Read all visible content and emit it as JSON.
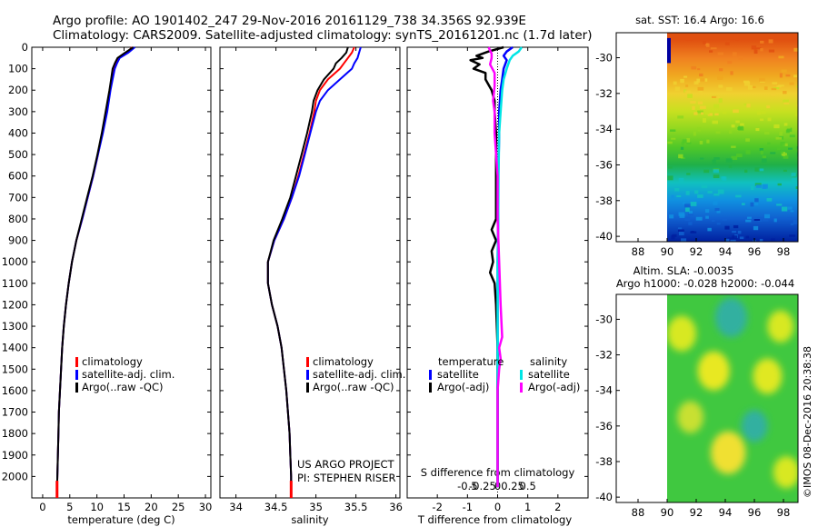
{
  "header": {
    "line1": "Argo profile: AO 1901402_247 29-Nov-2016 20161129_738 34.356S 92.939E",
    "line2": "Climatology: CARS2009. Satellite-adjusted climatology: synTS_20161201.nc (1.7d later)"
  },
  "credits": {
    "project": "US ARGO PROJECT",
    "pi": "PI: STEPHEN RISER",
    "stamp": "©IMOS 08-Dec-2016 20:38:38"
  },
  "colors": {
    "climatology": "#ff0000",
    "satellite": "#0000ff",
    "argo": "#000000",
    "satellite_s": "#00e5e5",
    "argo_s": "#ff00ff"
  },
  "chart_data": [
    {
      "id": "temperature",
      "type": "line",
      "xlabel": "temperature (deg C)",
      "ylabel": "",
      "xlim": [
        -2,
        31
      ],
      "ylim": [
        2100,
        0
      ],
      "xticks": [
        0,
        5,
        10,
        15,
        20,
        25,
        30
      ],
      "xtick_labels": [
        "0",
        "5",
        "10",
        "15",
        "20",
        "25",
        "30"
      ],
      "yticks": [
        0,
        100,
        200,
        300,
        400,
        500,
        600,
        700,
        800,
        900,
        1000,
        1100,
        1200,
        1300,
        1400,
        1500,
        1600,
        1700,
        1800,
        1900,
        2000
      ],
      "legend": [
        "climatology",
        "satellite-adj. clim.",
        "Argo(..raw -QC)"
      ],
      "series": [
        {
          "name": "climatology",
          "depth": [
            0,
            25,
            50,
            75,
            100,
            150,
            200,
            300,
            400,
            500,
            600,
            700,
            800,
            900,
            1000,
            1100,
            1200,
            1300,
            1400,
            1500,
            1600,
            1700,
            1800,
            1900,
            2000,
            2050
          ],
          "values": [
            16.5,
            15.5,
            14.0,
            13.6,
            13.2,
            12.8,
            12.4,
            11.8,
            11.0,
            10.2,
            9.3,
            8.3,
            7.3,
            6.2,
            5.4,
            4.8,
            4.3,
            3.9,
            3.6,
            3.4,
            3.2,
            3.0,
            2.9,
            2.8,
            2.7,
            2.65
          ]
        },
        {
          "name": "satellite-adj. clim.",
          "depth": [
            0,
            25,
            50,
            75,
            100,
            150,
            200,
            300,
            400,
            500,
            600,
            700,
            800,
            900,
            1000,
            1100,
            1200,
            1300,
            1400,
            1500,
            1600,
            1700,
            1800,
            1900,
            2000,
            2050
          ],
          "values": [
            17.0,
            15.8,
            14.2,
            13.7,
            13.3,
            12.9,
            12.5,
            11.9,
            11.1,
            10.2,
            9.3,
            8.3,
            7.3,
            6.2,
            5.4,
            4.8,
            4.3,
            3.9,
            3.6,
            3.4,
            3.2,
            3.0,
            2.9,
            2.8,
            2.7,
            2.65
          ]
        },
        {
          "name": "Argo(..raw -QC)",
          "depth": [
            0,
            25,
            50,
            75,
            100,
            150,
            200,
            300,
            400,
            500,
            600,
            700,
            800,
            900,
            1000,
            1100,
            1200,
            1300,
            1400,
            1500,
            1600,
            1700,
            1800,
            1900,
            2000,
            2050
          ],
          "values": [
            16.7,
            15.2,
            13.8,
            13.3,
            12.9,
            12.6,
            12.3,
            11.6,
            10.9,
            10.1,
            9.2,
            8.2,
            7.2,
            6.2,
            5.4,
            4.8,
            4.3,
            3.9,
            3.6,
            3.4,
            3.2,
            3.0,
            2.9,
            2.8,
            2.7,
            2.65
          ]
        }
      ]
    },
    {
      "id": "salinity",
      "type": "line",
      "xlabel": "salinity",
      "ylabel": "",
      "xlim": [
        33.8,
        36.05
      ],
      "ylim": [
        2100,
        0
      ],
      "xticks": [
        34,
        34.5,
        35,
        35.5,
        36
      ],
      "xtick_labels": [
        "34",
        "34.5",
        "35",
        "35.5",
        "36"
      ],
      "legend": [
        "climatology",
        "satellite-adj. clim.",
        "Argo(..raw -QC)"
      ],
      "series": [
        {
          "name": "climatology",
          "depth": [
            0,
            25,
            50,
            75,
            100,
            150,
            200,
            250,
            300,
            400,
            500,
            600,
            700,
            800,
            900,
            1000,
            1100,
            1200,
            1300,
            1400,
            1500,
            1600,
            1700,
            1800,
            1900,
            2000,
            2050
          ],
          "values": [
            35.48,
            35.45,
            35.4,
            35.35,
            35.3,
            35.15,
            35.05,
            35.0,
            34.98,
            34.92,
            34.85,
            34.78,
            34.7,
            34.6,
            34.48,
            34.4,
            34.4,
            34.45,
            34.52,
            34.57,
            34.6,
            34.63,
            34.65,
            34.67,
            34.68,
            34.69,
            34.69
          ]
        },
        {
          "name": "satellite-adj. clim.",
          "depth": [
            0,
            25,
            50,
            75,
            100,
            150,
            200,
            250,
            300,
            400,
            500,
            600,
            700,
            800,
            900,
            1000,
            1100,
            1200,
            1300,
            1400,
            1500,
            1600,
            1700,
            1800,
            1900,
            2000,
            2050
          ],
          "values": [
            35.56,
            35.54,
            35.52,
            35.48,
            35.45,
            35.3,
            35.15,
            35.05,
            35.0,
            34.93,
            34.86,
            34.79,
            34.7,
            34.6,
            34.48,
            34.4,
            34.4,
            34.45,
            34.52,
            34.57,
            34.6,
            34.63,
            34.65,
            34.67,
            34.68,
            34.69,
            34.69
          ]
        },
        {
          "name": "Argo(..raw -QC)",
          "depth": [
            0,
            25,
            50,
            75,
            100,
            150,
            200,
            250,
            300,
            400,
            500,
            600,
            700,
            800,
            900,
            1000,
            1100,
            1200,
            1300,
            1400,
            1500,
            1600,
            1700,
            1800,
            1900,
            2000,
            2050
          ],
          "values": [
            35.4,
            35.38,
            35.32,
            35.25,
            35.22,
            35.1,
            35.02,
            34.97,
            34.95,
            34.89,
            34.82,
            34.75,
            34.68,
            34.58,
            34.47,
            34.4,
            34.4,
            34.45,
            34.52,
            34.57,
            34.6,
            34.63,
            34.65,
            34.67,
            34.68,
            34.69,
            34.69
          ]
        }
      ]
    },
    {
      "id": "difference",
      "type": "line",
      "xlabel": "T difference from climatology",
      "top_xlabel": "S difference from climatology",
      "xlim": [
        -3,
        3
      ],
      "ylim": [
        2100,
        0
      ],
      "xticks": [
        -2,
        -1,
        0,
        1,
        2
      ],
      "xtick_labels": [
        "-2",
        "-1",
        "0",
        "1",
        "2"
      ],
      "top_tick_values": [
        -1,
        -0.5,
        0,
        0.5,
        1
      ],
      "top_tick_labels": [
        "-0.5",
        "-0.25",
        "0",
        "0.25",
        "0.5"
      ],
      "legend_titles": [
        "temperature",
        "salinity"
      ],
      "legend": [
        "satellite",
        "Argo(-adj)",
        "satellite",
        "Argo(-adj)"
      ],
      "series": [
        {
          "name": "T satellite",
          "depth": [
            0,
            20,
            40,
            60,
            80,
            100,
            150,
            200,
            300,
            400,
            600,
            800,
            1000,
            1200,
            1400,
            1600,
            1800,
            2050
          ],
          "values": [
            0.5,
            0.3,
            0.2,
            0.3,
            0.25,
            0.2,
            0.15,
            0.1,
            0.05,
            0.05,
            0.02,
            0.02,
            0.0,
            0.0,
            0.0,
            0.0,
            0.0,
            0.0
          ]
        },
        {
          "name": "T Argo(-adj)",
          "depth": [
            0,
            20,
            40,
            50,
            60,
            80,
            100,
            120,
            150,
            200,
            250,
            300,
            400,
            600,
            800,
            850,
            900,
            950,
            1000,
            1050,
            1100,
            1200,
            1400,
            1600,
            1800,
            2000,
            2050
          ],
          "values": [
            0.2,
            -0.3,
            -0.7,
            -0.5,
            -0.9,
            -0.6,
            -0.8,
            -0.4,
            -0.4,
            -0.2,
            -0.1,
            -0.1,
            -0.05,
            -0.05,
            -0.05,
            -0.2,
            -0.05,
            -0.2,
            -0.15,
            -0.25,
            -0.1,
            -0.05,
            0.0,
            0.0,
            0.0,
            0.0,
            0.0
          ]
        },
        {
          "name": "S satellite",
          "depth": [
            0,
            20,
            40,
            60,
            80,
            100,
            150,
            200,
            300,
            400,
            600,
            800,
            1000,
            1200,
            1400,
            1600,
            1800,
            2050
          ],
          "values": [
            0.8,
            0.7,
            0.5,
            0.4,
            0.35,
            0.3,
            0.2,
            0.15,
            0.1,
            0.05,
            0.03,
            0.02,
            0.0,
            0.0,
            0.0,
            0.0,
            0.0,
            0.0
          ]
        },
        {
          "name": "S Argo(-adj)",
          "depth": [
            0,
            30,
            50,
            80,
            120,
            180,
            250,
            300,
            400,
            600,
            800,
            1000,
            1200,
            1350,
            1400,
            1450,
            1500,
            1600,
            1800,
            2050
          ],
          "values": [
            -0.3,
            -0.2,
            -0.2,
            -0.25,
            -0.1,
            -0.1,
            -0.15,
            -0.1,
            -0.1,
            0.0,
            0.0,
            0.05,
            0.1,
            0.15,
            0.05,
            0.1,
            0.05,
            0.0,
            0.0,
            0.0
          ]
        }
      ]
    },
    {
      "id": "sst_map",
      "type": "heatmap",
      "title": "sat. SST: 16.4 Argo: 16.6",
      "xlim": [
        86.5,
        99
      ],
      "ylim": [
        -40.3,
        -28.6
      ],
      "xticks": [
        88,
        90,
        92,
        94,
        96,
        98
      ],
      "yticks": [
        -30,
        -32,
        -34,
        -36,
        -38,
        -40
      ],
      "xtick_labels": [
        "88",
        "90",
        "92",
        "94",
        "96",
        "98"
      ],
      "ytick_labels": [
        "-30",
        "-32",
        "-34",
        "-36",
        "-38",
        "-40"
      ],
      "data_extent": [
        90,
        99
      ],
      "bands": [
        {
          "lat": -29.0,
          "color": "#e05010"
        },
        {
          "lat": -30.0,
          "color": "#f08020"
        },
        {
          "lat": -31.0,
          "color": "#f0a820"
        },
        {
          "lat": -32.0,
          "color": "#f0d030"
        },
        {
          "lat": -33.0,
          "color": "#c8e020"
        },
        {
          "lat": -34.0,
          "color": "#90d820"
        },
        {
          "lat": -35.0,
          "color": "#50c828"
        },
        {
          "lat": -36.0,
          "color": "#20b048"
        },
        {
          "lat": -37.0,
          "color": "#10c0c0"
        },
        {
          "lat": -38.0,
          "color": "#1090e0"
        },
        {
          "lat": -39.0,
          "color": "#1060d0"
        },
        {
          "lat": -40.3,
          "color": "#0020a0"
        }
      ]
    },
    {
      "id": "sla_map",
      "type": "heatmap",
      "title": "Altim. SLA: -0.0035",
      "subtitle": "Argo h1000: -0.028 h2000: -0.044",
      "xlim": [
        86.5,
        99
      ],
      "ylim": [
        -40.3,
        -28.6
      ],
      "xticks": [
        88,
        90,
        92,
        94,
        96,
        98
      ],
      "yticks": [
        -30,
        -32,
        -34,
        -36,
        -38,
        -40
      ],
      "xtick_labels": [
        "88",
        "90",
        "92",
        "94",
        "96",
        "98"
      ],
      "ytick_labels": [
        "-30",
        "-32",
        "-34",
        "-36",
        "-38",
        "-40"
      ],
      "data_extent": [
        90,
        99
      ],
      "base_color": "#40c840",
      "blobs": [
        {
          "lon": 94.4,
          "lat": -29.9,
          "r": 1.1,
          "color": "#30b0a0"
        },
        {
          "lon": 91.0,
          "lat": -30.8,
          "r": 1.0,
          "color": "#d8e820"
        },
        {
          "lon": 97.8,
          "lat": -30.4,
          "r": 0.9,
          "color": "#d8e820"
        },
        {
          "lon": 93.2,
          "lat": -32.9,
          "r": 1.1,
          "color": "#e8e820"
        },
        {
          "lon": 96.9,
          "lat": -33.2,
          "r": 1.0,
          "color": "#e0e820"
        },
        {
          "lon": 91.6,
          "lat": -35.5,
          "r": 0.9,
          "color": "#c8e030"
        },
        {
          "lon": 96.0,
          "lat": -36.0,
          "r": 0.9,
          "color": "#30b0a0"
        },
        {
          "lon": 94.2,
          "lat": -37.5,
          "r": 1.2,
          "color": "#f0e030"
        },
        {
          "lon": 98.2,
          "lat": -38.6,
          "r": 0.9,
          "color": "#d8e820"
        }
      ]
    }
  ]
}
